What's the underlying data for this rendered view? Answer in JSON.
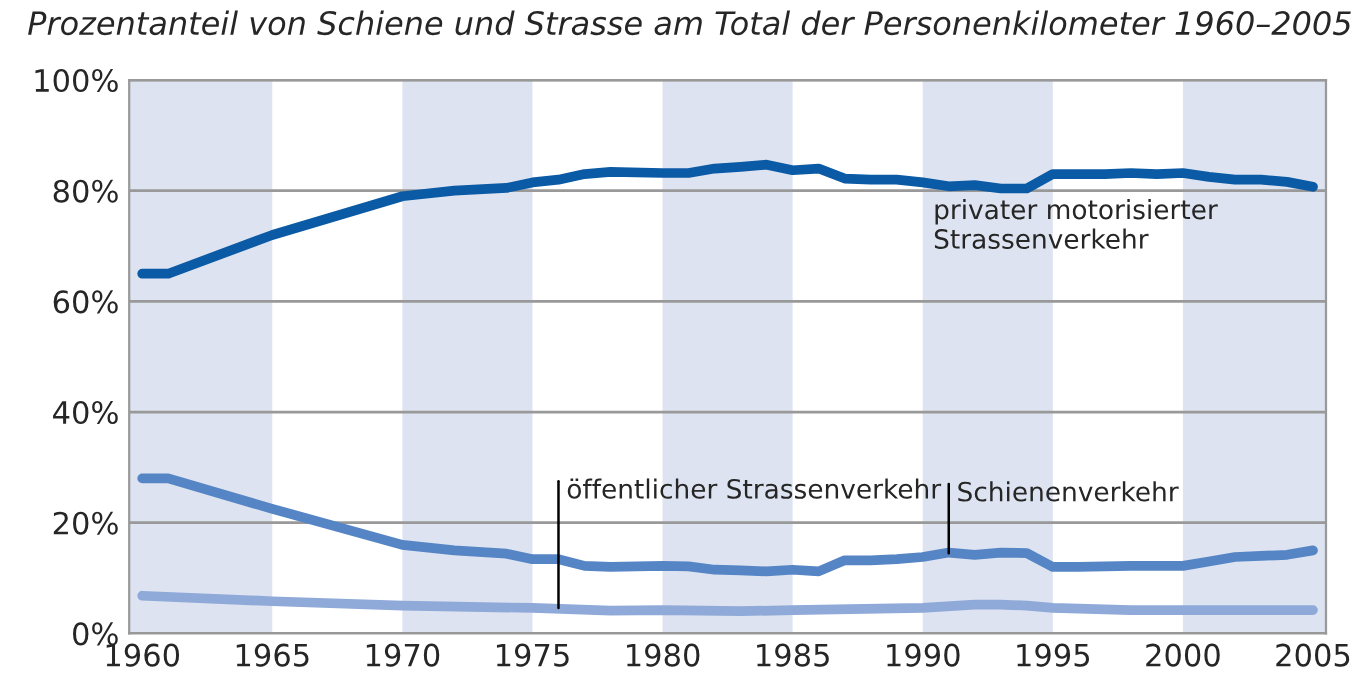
{
  "chart_data": {
    "type": "line",
    "title": "Prozentanteil von Schiene und Strasse am Total der Personenkilometer 1960–2005",
    "series": [
      {
        "name": "privater motorisierter Strassenverkehr",
        "color": "#0a5aa5",
        "x": [
          1960,
          1961,
          1965,
          1970,
          1972,
          1974,
          1975,
          1976,
          1977,
          1978,
          1980,
          1981,
          1982,
          1983,
          1984,
          1985,
          1986,
          1987,
          1988,
          1989,
          1990,
          1991,
          1992,
          1993,
          1994,
          1995,
          1996,
          1997,
          1998,
          1999,
          2000,
          2001,
          2002,
          2003,
          2004,
          2005
        ],
        "values": [
          65,
          65,
          72,
          79,
          80,
          80.5,
          81.5,
          82,
          83,
          83.4,
          83.2,
          83.2,
          84,
          84.3,
          84.7,
          83.7,
          84,
          82.2,
          82,
          82,
          81.5,
          80.8,
          81,
          80.4,
          80.4,
          83,
          83,
          83,
          83.2,
          83,
          83.2,
          82.5,
          82,
          82,
          81.6,
          80.7
        ]
      },
      {
        "name": "Schienenverkehr",
        "color": "#5585c5",
        "x": [
          1960,
          1961,
          1965,
          1970,
          1972,
          1974,
          1975,
          1976,
          1977,
          1978,
          1980,
          1981,
          1982,
          1983,
          1984,
          1985,
          1986,
          1987,
          1988,
          1989,
          1990,
          1991,
          1992,
          1993,
          1994,
          1995,
          1996,
          1998,
          2000,
          2001,
          2002,
          2003,
          2004,
          2005
        ],
        "values": [
          28,
          28,
          22.5,
          16,
          15,
          14.4,
          13.4,
          13.4,
          12.2,
          12,
          12.2,
          12.1,
          11.5,
          11.4,
          11.2,
          11.5,
          11.2,
          13.2,
          13.2,
          13.4,
          13.8,
          14.6,
          14.2,
          14.6,
          14.5,
          12,
          12,
          12.2,
          12.2,
          13,
          13.8,
          14,
          14.2,
          15
        ]
      },
      {
        "name": "öffentlicher Strassenverkehr",
        "color": "#8fa9d8",
        "x": [
          1960,
          1965,
          1970,
          1975,
          1978,
          1980,
          1983,
          1985,
          1990,
          1992,
          1993,
          1994,
          1995,
          1998,
          2000,
          2005
        ],
        "values": [
          6.8,
          5.8,
          5,
          4.6,
          4.1,
          4.2,
          4,
          4.2,
          4.6,
          5.2,
          5.2,
          5,
          4.6,
          4.2,
          4.2,
          4.2
        ]
      }
    ],
    "xlim": [
      1959.5,
      2005.5
    ],
    "xticks": [
      1960,
      1965,
      1970,
      1975,
      1980,
      1985,
      1990,
      1995,
      2000,
      2005
    ],
    "ylim": [
      0,
      100
    ],
    "yticks": [
      {
        "value": 0,
        "label": "0%"
      },
      {
        "value": 20,
        "label": "20%"
      },
      {
        "value": 40,
        "label": "40%"
      },
      {
        "value": 60,
        "label": "60%"
      },
      {
        "value": 80,
        "label": "80%"
      },
      {
        "value": 100,
        "label": "100%"
      }
    ],
    "grid": "y",
    "legend": false,
    "marker": "none",
    "line_style": "solid",
    "bands": [
      {
        "axis": "x",
        "from": 1959.5,
        "to": 1965,
        "color": "#dde3f0"
      },
      {
        "axis": "x",
        "from": 1970,
        "to": 1975,
        "color": "#dde3f0"
      },
      {
        "axis": "x",
        "from": 1980,
        "to": 1985,
        "color": "#dde3f0"
      },
      {
        "axis": "x",
        "from": 1990,
        "to": 1995,
        "color": "#dde3f0"
      },
      {
        "axis": "x",
        "from": 2000,
        "to": 2005.5,
        "color": "#dde3f0"
      }
    ]
  }
}
